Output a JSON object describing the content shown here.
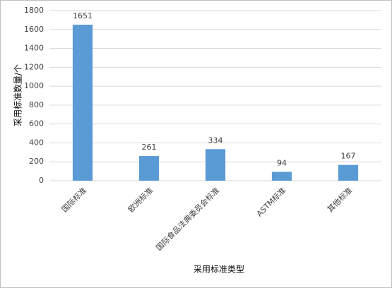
{
  "chart_data": {
    "type": "bar",
    "categories": [
      "国际标准",
      "欧洲标准",
      "国际食品法典委员会标准",
      "ASTM标准",
      "其他标准"
    ],
    "values": [
      1651,
      261,
      334,
      94,
      167
    ],
    "color": "#5b9bd5",
    "ylim": [
      0,
      1800
    ],
    "yticks": [
      0,
      200,
      400,
      600,
      800,
      1000,
      1200,
      1400,
      1600,
      1800
    ],
    "grid": true,
    "x_label": "采用标准类型",
    "y_label": "采用标准数量/个"
  }
}
